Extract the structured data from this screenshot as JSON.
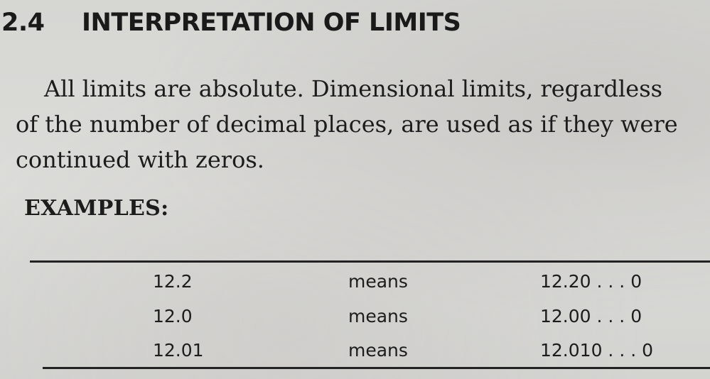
{
  "section": {
    "number": "2.4",
    "title": "INTERPRETATION OF LIMITS"
  },
  "paragraph": {
    "lines": [
      "All limits are absolute. Dimensional limits, regardless",
      "of the number of decimal places, are used as if they were",
      "continued with zeros."
    ]
  },
  "examples": {
    "heading": "EXAMPLES:",
    "rows": [
      {
        "value": "12.2",
        "relation": "means",
        "result": "12.20 . . . 0"
      },
      {
        "value": "12.0",
        "relation": "means",
        "result": "12.00 . . . 0"
      },
      {
        "value": "12.01",
        "relation": "means",
        "result": "12.010 . . . 0"
      }
    ]
  }
}
